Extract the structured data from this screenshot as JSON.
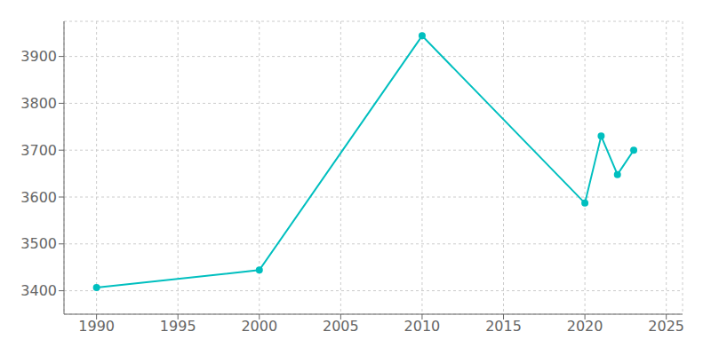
{
  "chart_data": {
    "type": "line",
    "x": [
      1990,
      2000,
      2010,
      2020,
      2021,
      2022,
      2023
    ],
    "values": [
      3407,
      3444,
      3944,
      3587,
      3730,
      3648,
      3700
    ],
    "color": "#00BFBF",
    "marker": "circle",
    "xlim": [
      1988,
      2026
    ],
    "ylim": [
      3350,
      3975
    ],
    "xticks": [
      1990,
      1995,
      2000,
      2005,
      2010,
      2015,
      2020,
      2025
    ],
    "yticks": [
      3400,
      3500,
      3600,
      3700,
      3800,
      3900
    ],
    "grid": true
  }
}
